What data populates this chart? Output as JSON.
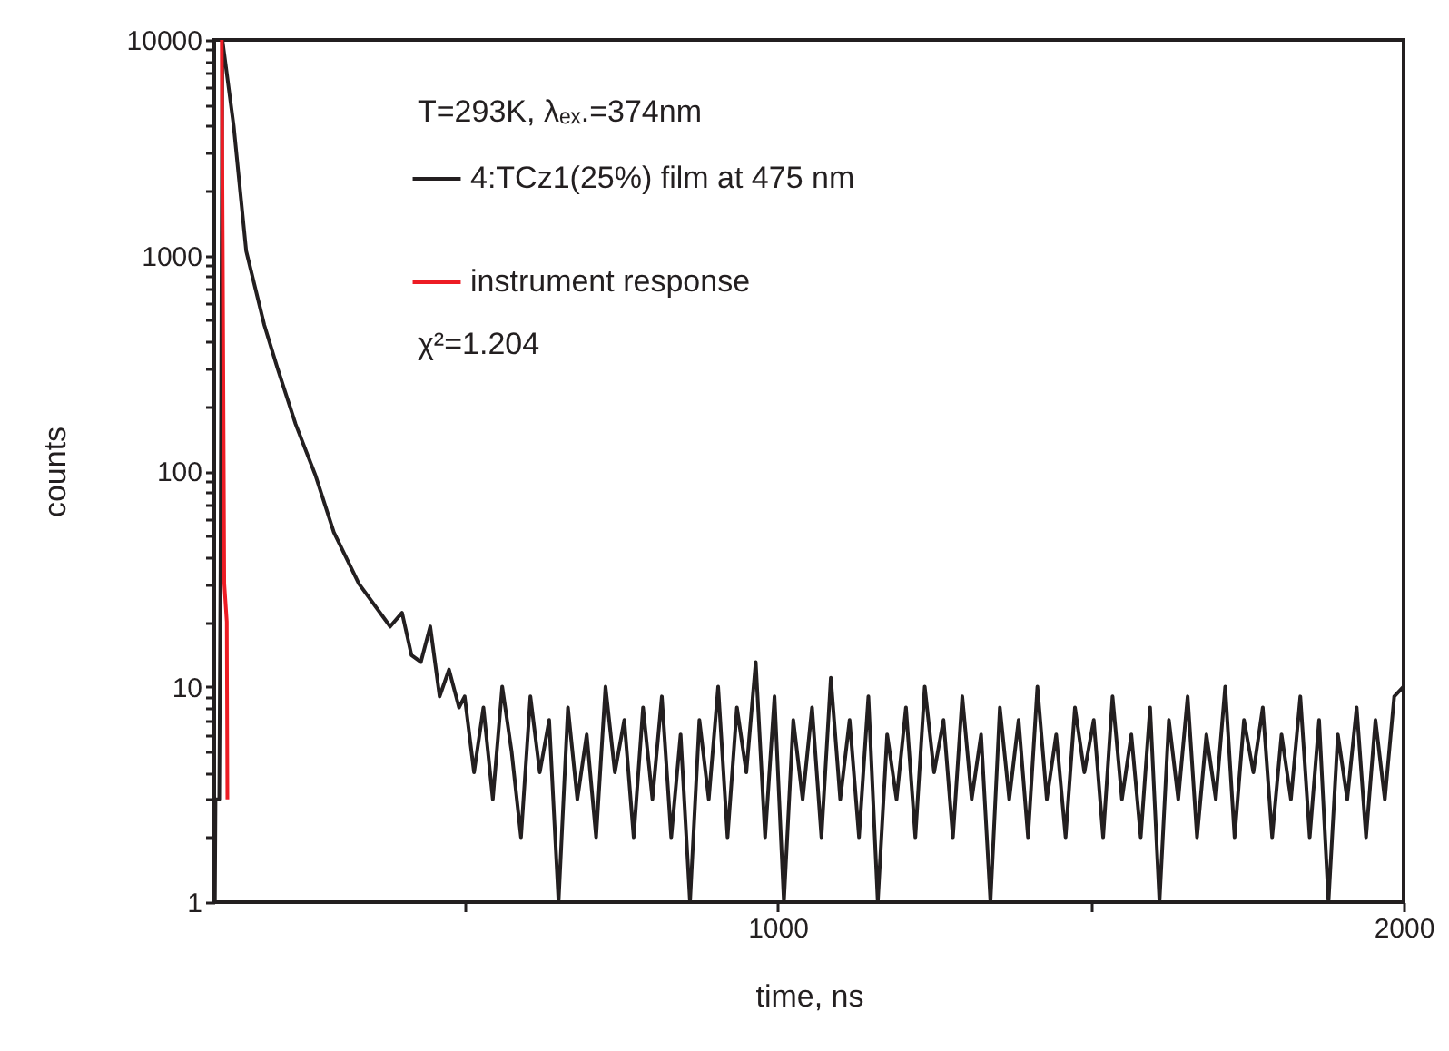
{
  "chart_data": {
    "type": "line",
    "xlabel": "time, ns",
    "ylabel": "counts",
    "annotations": [
      "T=293K, λₑₓ.=374nm",
      "χ²=1.204"
    ],
    "log": "y",
    "xlim": [
      100,
      2000
    ],
    "ylim": [
      1,
      10000
    ],
    "xticks": [
      {
        "value": 500,
        "label": null
      },
      1000,
      {
        "value": 1500,
        "label": null
      },
      2000
    ],
    "yticks": [
      1,
      {
        "value": 2,
        "label": null
      },
      {
        "value": 3,
        "label": null
      },
      {
        "value": 4,
        "label": null
      },
      {
        "value": 5,
        "label": null
      },
      {
        "value": 6,
        "label": null
      },
      {
        "value": 7,
        "label": null
      },
      {
        "value": 8,
        "label": null
      },
      {
        "value": 9,
        "label": null
      },
      10,
      {
        "value": 20,
        "label": null
      },
      {
        "value": 30,
        "label": null
      },
      {
        "value": 40,
        "label": null
      },
      {
        "value": 50,
        "label": null
      },
      {
        "value": 60,
        "label": null
      },
      {
        "value": 70,
        "label": null
      },
      {
        "value": 80,
        "label": null
      },
      {
        "value": 90,
        "label": null
      },
      100,
      {
        "value": 200,
        "label": null
      },
      {
        "value": 300,
        "label": null
      },
      {
        "value": 400,
        "label": null
      },
      {
        "value": 500,
        "label": null
      },
      {
        "value": 600,
        "label": null
      },
      {
        "value": 700,
        "label": null
      },
      {
        "value": 800,
        "label": null
      },
      {
        "value": 900,
        "label": null
      },
      1000,
      {
        "value": 2000,
        "label": null
      },
      {
        "value": 3000,
        "label": null
      },
      {
        "value": 4000,
        "label": null
      },
      {
        "value": 5000,
        "label": null
      },
      {
        "value": 6000,
        "label": null
      },
      {
        "value": 7000,
        "label": null
      },
      {
        "value": 8000,
        "label": null
      },
      {
        "value": 9000,
        "label": null
      },
      10000
    ],
    "grid": false,
    "legend": "top left",
    "marker": "none",
    "line_style": "solid",
    "series": [
      {
        "name": "4:TCz1(25%) film at 475 nm",
        "color": "#231f20",
        "x": [
          101,
          102,
          108,
          110,
          113,
          131,
          151,
          180,
          201,
          230,
          262,
          291,
          331,
          381,
          400,
          415,
          430,
          445,
          460,
          475,
          491,
          500,
          515,
          530,
          545,
          560,
          575,
          590,
          605,
          620,
          635,
          650,
          665,
          680,
          695,
          710,
          725,
          740,
          755,
          770,
          785,
          800,
          815,
          830,
          845,
          860,
          875,
          890,
          905,
          920,
          935,
          950,
          965,
          980,
          995,
          1010,
          1025,
          1040,
          1055,
          1070,
          1085,
          1100,
          1115,
          1130,
          1145,
          1160,
          1175,
          1190,
          1205,
          1220,
          1235,
          1250,
          1265,
          1280,
          1295,
          1310,
          1325,
          1340,
          1355,
          1370,
          1385,
          1400,
          1415,
          1430,
          1445,
          1460,
          1475,
          1490,
          1505,
          1520,
          1535,
          1550,
          1565,
          1580,
          1595,
          1610,
          1625,
          1640,
          1655,
          1670,
          1685,
          1700,
          1715,
          1730,
          1745,
          1760,
          1775,
          1790,
          1805,
          1820,
          1835,
          1850,
          1865,
          1880,
          1895,
          1910,
          1925,
          1940,
          1955,
          1970,
          1985,
          2000
        ],
        "values": [
          1,
          3,
          3,
          35,
          10000,
          4000,
          1050,
          475,
          300,
          165,
          95,
          52,
          30,
          19,
          22,
          14,
          13,
          19,
          9,
          12,
          8,
          9,
          4,
          8,
          3,
          10,
          5,
          2,
          9,
          4,
          7,
          1,
          8,
          3,
          6,
          2,
          10,
          4,
          7,
          2,
          8,
          3,
          9,
          2,
          6,
          1,
          7,
          3,
          10,
          2,
          8,
          4,
          13,
          2,
          9,
          1,
          7,
          3,
          8,
          2,
          11,
          3,
          7,
          2,
          9,
          1,
          6,
          3,
          8,
          2,
          10,
          4,
          7,
          2,
          9,
          3,
          6,
          1,
          8,
          3,
          7,
          2,
          10,
          3,
          6,
          2,
          8,
          4,
          7,
          2,
          9,
          3,
          6,
          2,
          8,
          1,
          7,
          3,
          9,
          2,
          6,
          3,
          10,
          2,
          7,
          4,
          8,
          2,
          6,
          3,
          9,
          2,
          7,
          1,
          6,
          3,
          8,
          2,
          7,
          3,
          9,
          10
        ]
      },
      {
        "name": "instrument response",
        "color": "#ed1c24",
        "x": [
          112,
          116,
          120,
          121
        ],
        "values": [
          10000,
          30,
          20,
          3
        ]
      }
    ]
  }
}
